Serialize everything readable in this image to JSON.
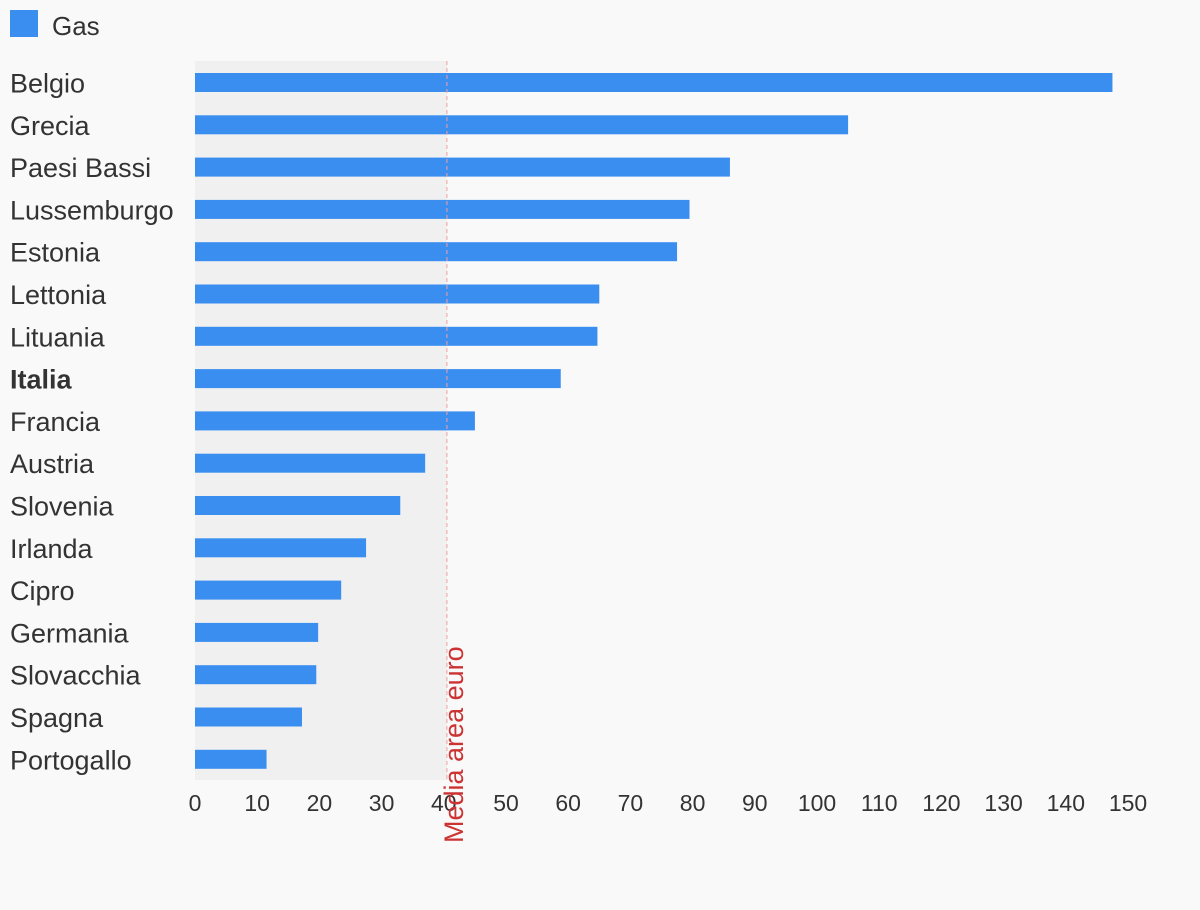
{
  "legend": {
    "label": "Gas",
    "color": "#3a8ef0"
  },
  "chart_data": {
    "type": "bar",
    "orientation": "horizontal",
    "categories": [
      "Belgio",
      "Grecia",
      "Paesi Bassi",
      "Lussemburgo",
      "Estonia",
      "Lettonia",
      "Lituania",
      "Italia",
      "Francia",
      "Austria",
      "Slovenia",
      "Irlanda",
      "Cipro",
      "Germania",
      "Slovacchia",
      "Spagna",
      "Portogallo"
    ],
    "highlight_category": "Italia",
    "series": [
      {
        "name": "Gas",
        "color": "#3a8ef0",
        "values": [
          147.5,
          105,
          86,
          79.5,
          77.5,
          65,
          64.7,
          58.8,
          45,
          37,
          33,
          27.5,
          23.5,
          19.8,
          19.5,
          17.2,
          11.5
        ]
      }
    ],
    "xlim": [
      0,
      150
    ],
    "xticks": [
      0,
      10,
      20,
      30,
      40,
      50,
      60,
      70,
      80,
      90,
      100,
      110,
      120,
      130,
      140,
      150
    ],
    "reference_line": {
      "value": 40.5,
      "label": "Media area euro",
      "color": "#cc3333",
      "style": "dashed"
    },
    "shaded_region": {
      "from": 0,
      "to": 40.5,
      "color": "#f0f0f0"
    },
    "title": "",
    "xlabel": "",
    "ylabel": "",
    "grid": false,
    "legend_position": "top-left"
  }
}
